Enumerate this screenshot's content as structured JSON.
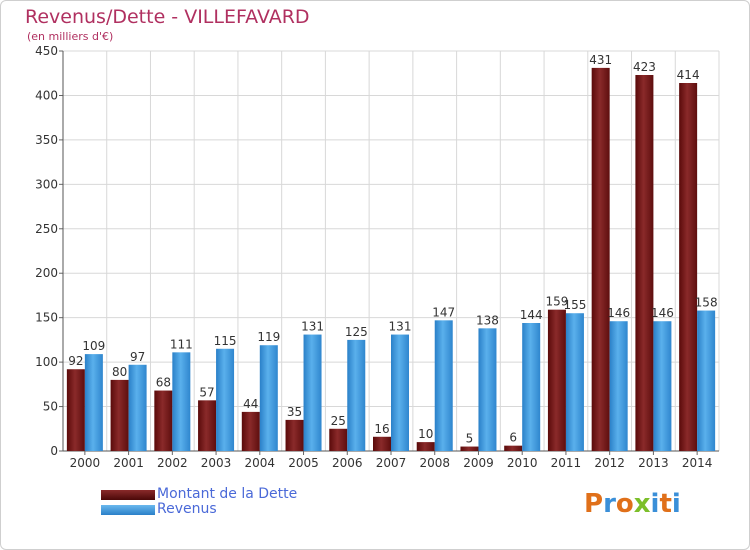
{
  "header": {
    "title": "Revenus/Dette - VILLEFAVARD",
    "subtitle": "(en milliers d'€)"
  },
  "chart_data": {
    "type": "bar",
    "title": "Revenus/Dette - VILLEFAVARD",
    "subtitle": "(en milliers d'€)",
    "xlabel": "",
    "ylabel": "",
    "ylim": [
      0,
      450
    ],
    "yticks": [
      0,
      50,
      100,
      150,
      200,
      250,
      300,
      350,
      400,
      450
    ],
    "grid": true,
    "legend_position": "bottom-left",
    "categories": [
      "2000",
      "2001",
      "2002",
      "2003",
      "2004",
      "2005",
      "2006",
      "2007",
      "2008",
      "2009",
      "2010",
      "2011",
      "2012",
      "2013",
      "2014"
    ],
    "series": [
      {
        "name": "Montant de la Dette",
        "color": "#7a1a1a",
        "values": [
          92,
          80,
          68,
          57,
          44,
          35,
          25,
          16,
          10,
          5,
          6,
          159,
          431,
          423,
          414
        ]
      },
      {
        "name": "Revenus",
        "color": "#3a96dc",
        "values": [
          109,
          97,
          111,
          115,
          119,
          131,
          125,
          131,
          147,
          138,
          144,
          155,
          146,
          146,
          158
        ]
      }
    ]
  },
  "logo": {
    "text": "Proxiti"
  }
}
